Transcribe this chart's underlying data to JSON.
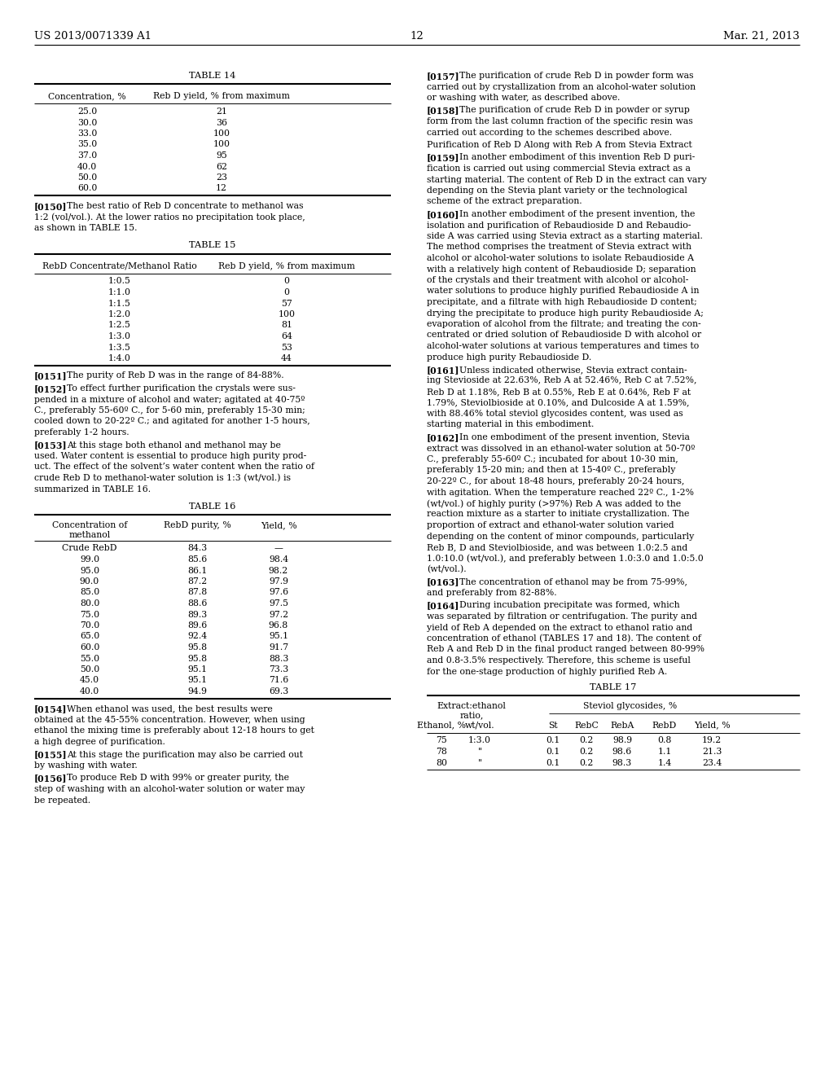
{
  "bg_color": "#ffffff",
  "header_left": "US 2013/0071339 A1",
  "header_center": "12",
  "header_right": "Mar. 21, 2013",
  "table14_title": "TABLE 14",
  "table14_col1": "Concentration, %",
  "table14_col2": "Reb D yield, % from maximum",
  "table14_data": [
    [
      "25.0",
      "21"
    ],
    [
      "30.0",
      "36"
    ],
    [
      "33.0",
      "100"
    ],
    [
      "35.0",
      "100"
    ],
    [
      "37.0",
      "95"
    ],
    [
      "40.0",
      "62"
    ],
    [
      "50.0",
      "23"
    ],
    [
      "60.0",
      "12"
    ]
  ],
  "para150": "[0150]",
  "para150_text": "The best ratio of Reb D concentrate to methanol was\n1:2 (vol/vol.). At the lower ratios no precipitation took place,\nas shown in TABLE 15.",
  "table15_title": "TABLE 15",
  "table15_col1": "RebD Concentrate/Methanol Ratio",
  "table15_col2": "Reb D yield, % from maximum",
  "table15_data": [
    [
      "1:0.5",
      "0"
    ],
    [
      "1:1.0",
      "0"
    ],
    [
      "1:1.5",
      "57"
    ],
    [
      "1:2.0",
      "100"
    ],
    [
      "1:2.5",
      "81"
    ],
    [
      "1:3.0",
      "64"
    ],
    [
      "1:3.5",
      "53"
    ],
    [
      "1:4.0",
      "44"
    ]
  ],
  "para151_154": [
    {
      "tag": "[0151]",
      "text": "The purity of Reb D was in the range of 84-88%."
    },
    {
      "tag": "[0152]",
      "text": "To effect further purification the crystals were sus-\npended in a mixture of alcohol and water; agitated at 40-75º\nC., preferably 55-60º C., for 5-60 min, preferably 15-30 min;\ncooled down to 20-22º C.; and agitated for another 1-5 hours,\npreferably 1-2 hours."
    },
    {
      "tag": "[0153]",
      "text": "At this stage both ethanol and methanol may be\nused. Water content is essential to produce high purity prod-\nuct. The effect of the solvent’s water content when the ratio of\ncrude Reb D to methanol-water solution is 1:3 (wt/vol.) is\nsummarized in TABLE 16."
    }
  ],
  "table16_title": "TABLE 16",
  "table16_col1a": "Concentration of",
  "table16_col1b": "methanol",
  "table16_col2": "RebD purity, %",
  "table16_col3": "Yield, %",
  "table16_data": [
    [
      "Crude RebD",
      "84.3",
      "—"
    ],
    [
      "99.0",
      "85.6",
      "98.4"
    ],
    [
      "95.0",
      "86.1",
      "98.2"
    ],
    [
      "90.0",
      "87.2",
      "97.9"
    ],
    [
      "85.0",
      "87.8",
      "97.6"
    ],
    [
      "80.0",
      "88.6",
      "97.5"
    ],
    [
      "75.0",
      "89.3",
      "97.2"
    ],
    [
      "70.0",
      "89.6",
      "96.8"
    ],
    [
      "65.0",
      "92.4",
      "95.1"
    ],
    [
      "60.0",
      "95.8",
      "91.7"
    ],
    [
      "55.0",
      "95.8",
      "88.3"
    ],
    [
      "50.0",
      "95.1",
      "73.3"
    ],
    [
      "45.0",
      "95.1",
      "71.6"
    ],
    [
      "40.0",
      "94.9",
      "69.3"
    ]
  ],
  "para154_156": [
    {
      "tag": "[0154]",
      "text": "When ethanol was used, the best results were\nobtained at the 45-55% concentration. However, when using\nethanol the mixing time is preferably about 12-18 hours to get\na high degree of purification."
    },
    {
      "tag": "[0155]",
      "text": "At this stage the purification may also be carried out\nby washing with water."
    },
    {
      "tag": "[0156]",
      "text": "To produce Reb D with 99% or greater purity, the\nstep of washing with an alcohol-water solution or water may\nbe repeated."
    }
  ],
  "right_paragraphs": [
    {
      "tag": "[0157]",
      "text": "The purification of crude Reb D in powder form was\ncarried out by crystallization from an alcohol-water solution\nor washing with water, as described above."
    },
    {
      "tag": "[0158]",
      "text": "The purification of crude Reb D in powder or syrup\nform from the last column fraction of the specific resin was\ncarried out according to the schemes described above."
    },
    {
      "tag": "",
      "text": "Purification of Reb D Along with Reb A from Stevia Extract"
    },
    {
      "tag": "[0159]",
      "text": "In another embodiment of this invention Reb D puri-\nfication is carried out using commercial Stevia extract as a\nstarting material. The content of Reb D in the extract can vary\ndepending on the Stevia plant variety or the technological\nscheme of the extract preparation."
    },
    {
      "tag": "[0160]",
      "text": "In another embodiment of the present invention, the\nisolation and purification of Rebaudioside D and Rebaudio-\nside A was carried using Stevia extract as a starting material.\nThe method comprises the treatment of Stevia extract with\nalcohol or alcohol-water solutions to isolate Rebaudioside A\nwith a relatively high content of Rebaudioside D; separation\nof the crystals and their treatment with alcohol or alcohol-\nwater solutions to produce highly purified Rebaudioside A in\nprecipitate, and a filtrate with high Rebaudioside D content;\ndrying the precipitate to produce high purity Rebaudioside A;\nevaporation of alcohol from the filtrate; and treating the con-\ncentrated or dried solution of Rebaudioside D with alcohol or\nalcohol-water solutions at various temperatures and times to\nproduce high purity Rebaudioside D."
    },
    {
      "tag": "[0161]",
      "text": "Unless indicated otherwise, Stevia extract contain-\ning Stevioside at 22.63%, Reb A at 52.46%, Reb C at 7.52%,\nReb D at 1.18%, Reb B at 0.55%, Reb E at 0.64%, Reb F at\n1.79%, Steviolbioside at 0.10%, and Dulcoside A at 1.59%,\nwith 88.46% total steviol glycosides content, was used as\nstarting material in this embodiment."
    },
    {
      "tag": "[0162]",
      "text": "In one embodiment of the present invention, Stevia\nextract was dissolved in an ethanol-water solution at 50-70º\nC., preferably 55-60º C.; incubated for about 10-30 min,\npreferably 15-20 min; and then at 15-40º C., preferably\n20-22º C., for about 18-48 hours, preferably 20-24 hours,\nwith agitation. When the temperature reached 22º C., 1-2%\n(wt/vol.) of highly purity (>97%) Reb A was added to the\nreaction mixture as a starter to initiate crystallization. The\nproportion of extract and ethanol-water solution varied\ndepending on the content of minor compounds, particularly\nReb B, D and Steviolbioside, and was between 1.0:2.5 and\n1.0:10.0 (wt/vol.), and preferably between 1.0:3.0 and 1.0:5.0\n(wt/vol.)."
    },
    {
      "tag": "[0163]",
      "text": "The concentration of ethanol may be from 75-99%,\nand preferably from 82-88%."
    },
    {
      "tag": "[0164]",
      "text": "During incubation precipitate was formed, which\nwas separated by filtration or centrifugation. The purity and\nyield of Reb A depended on the extract to ethanol ratio and\nconcentration of ethanol (TABLES 17 and 18). The content of\nReb A and Reb D in the final product ranged between 80-99%\nand 0.8-3.5% respectively. Therefore, this scheme is useful\nfor the one-stage production of highly purified Reb A."
    }
  ],
  "table17_title": "TABLE 17",
  "table17_merged_hdr1": "Extract:ethanol",
  "table17_merged_hdr2": "ratio,",
  "table17_subhdr": "Steviol glycosides, %",
  "table17_cols": [
    "Ethanol, %",
    "wt/vol.",
    "St",
    "RebC",
    "RebA",
    "RebD",
    "Yield, %"
  ],
  "table17_data": [
    [
      "75",
      "1:3.0",
      "0.1",
      "0.2",
      "98.9",
      "0.8",
      "19.2"
    ],
    [
      "78",
      "\"",
      "0.1",
      "0.2",
      "98.6",
      "1.1",
      "21.3"
    ],
    [
      "80",
      "\"",
      "0.1",
      "0.2",
      "98.3",
      "1.4",
      "23.4"
    ]
  ]
}
